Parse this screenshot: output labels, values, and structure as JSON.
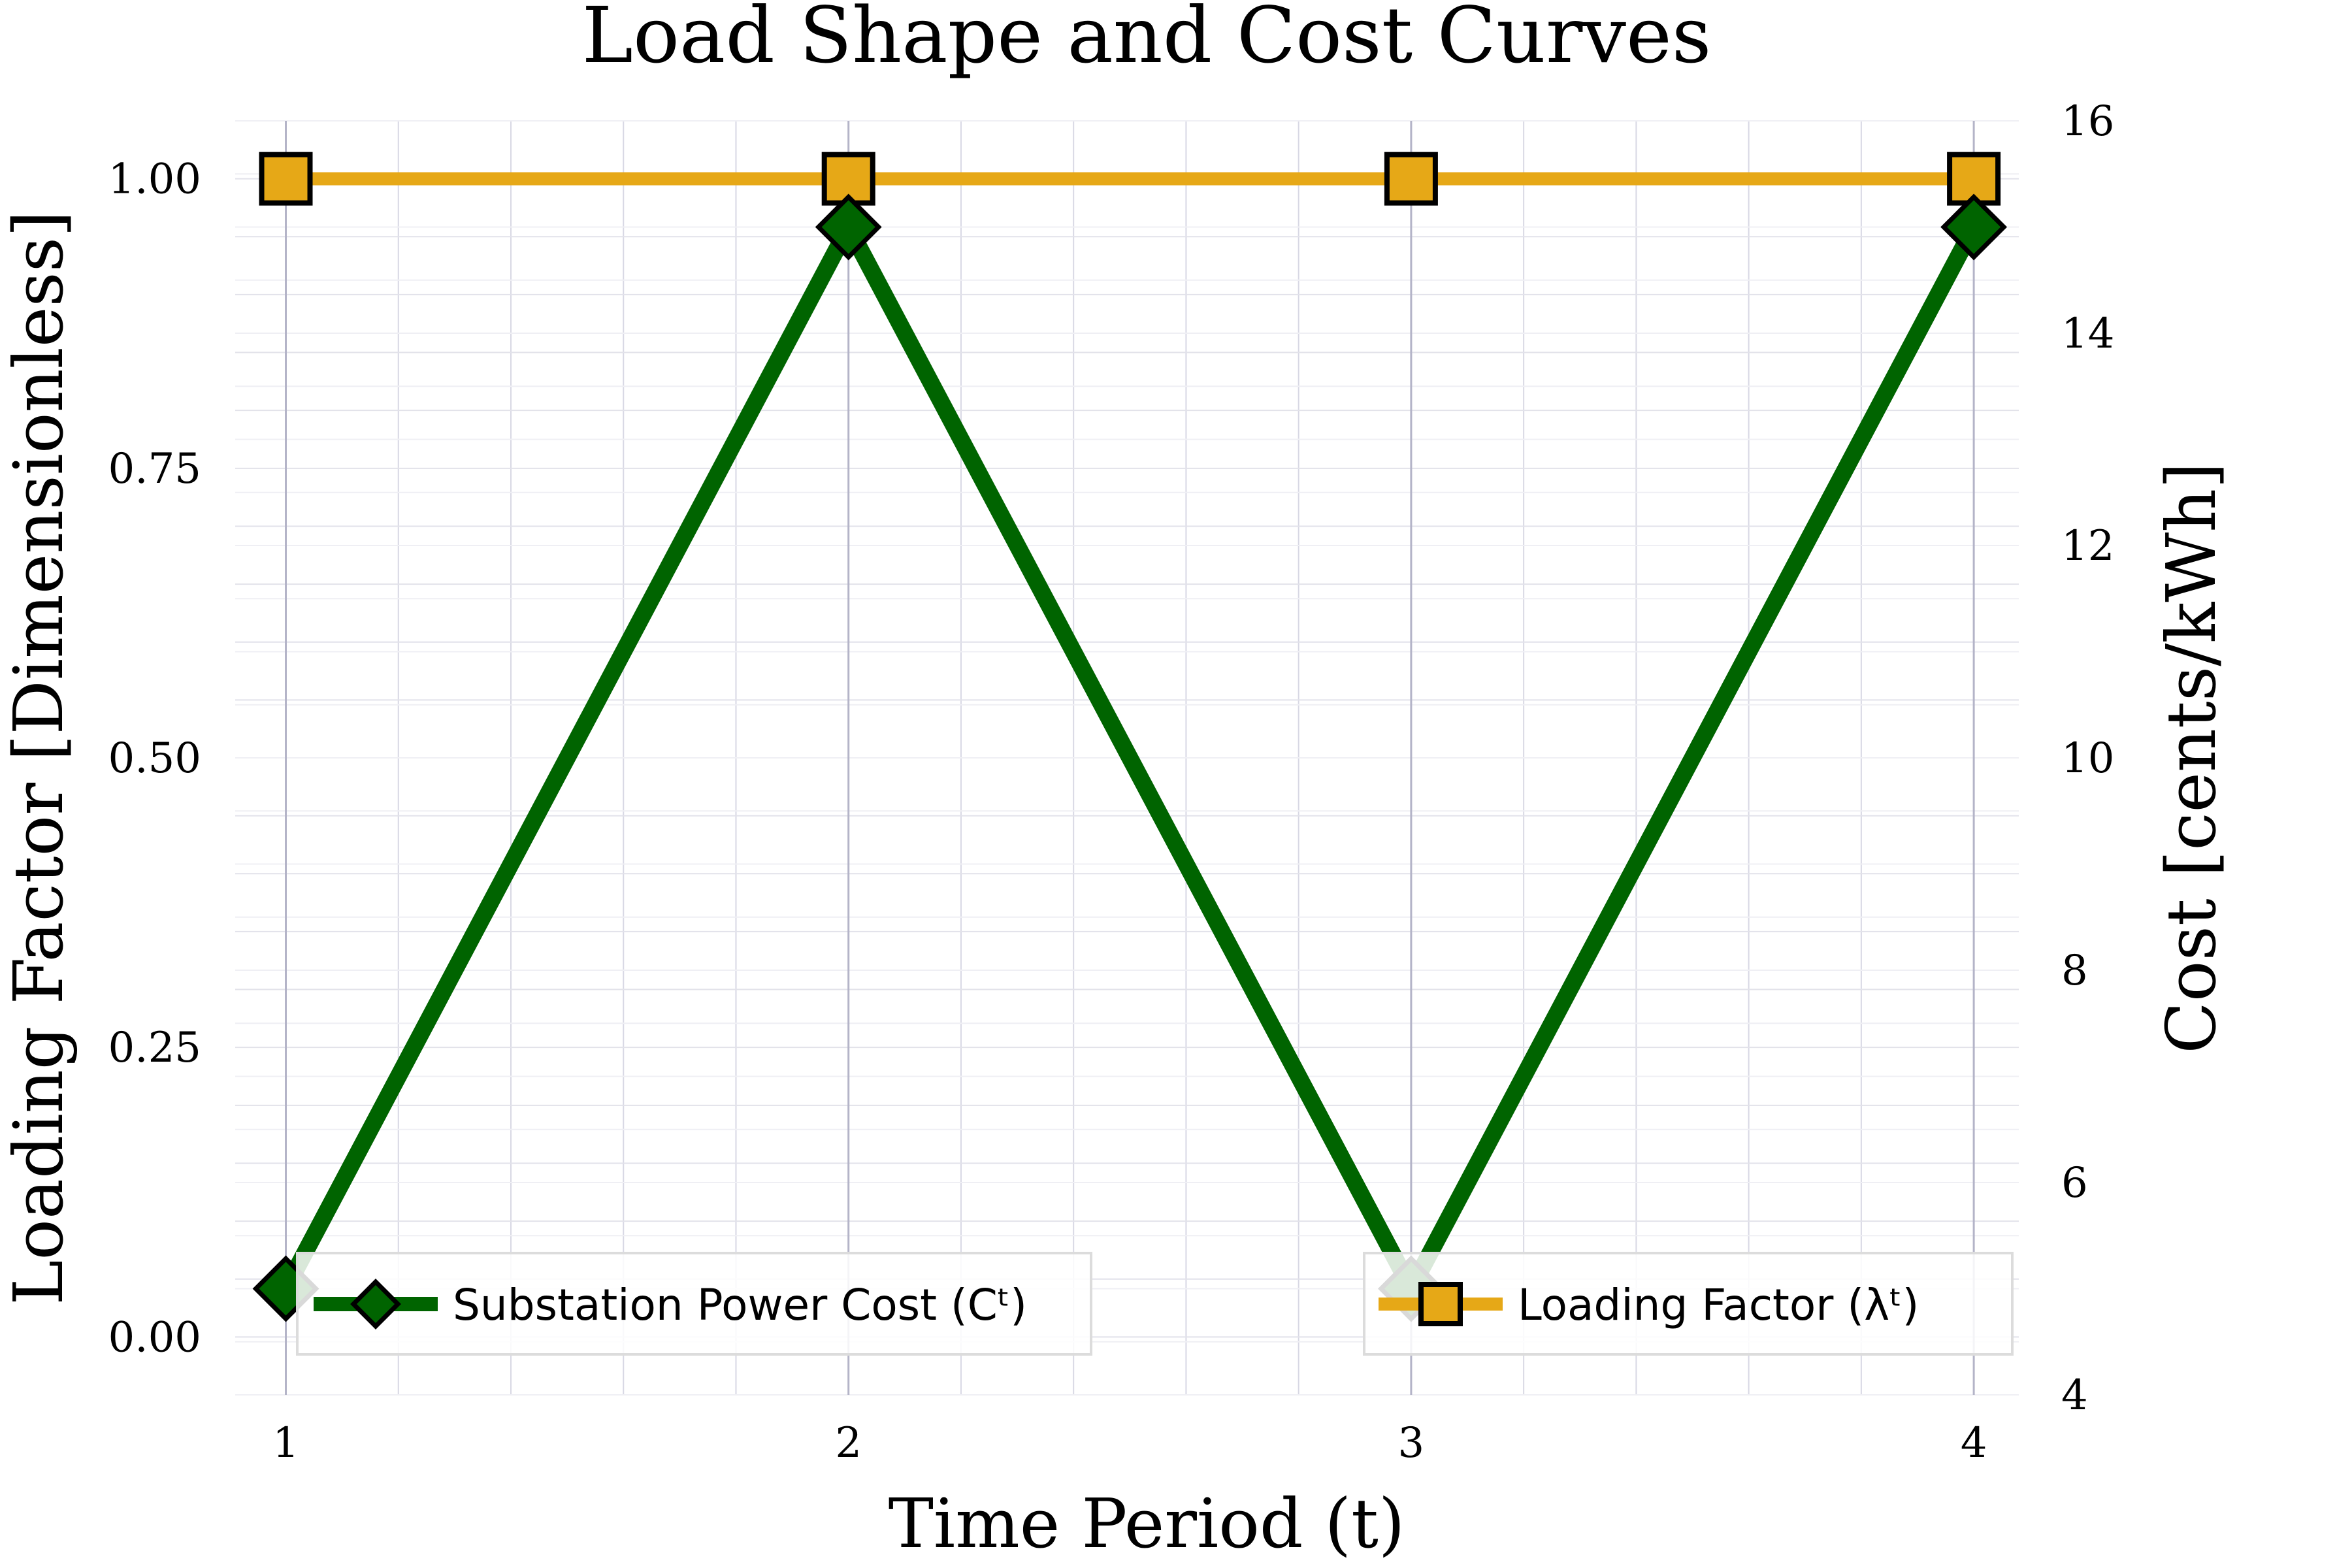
{
  "chart_data": {
    "type": "line",
    "title": "Load Shape and Cost Curves",
    "xlabel": "Time Period (t)",
    "ylabel_left": "Loading Factor [Dimensionless]",
    "ylabel_right": "Cost [cents/kWh]",
    "x": [
      1,
      2,
      3,
      4
    ],
    "x_ticks": [
      "1",
      "2",
      "3",
      "4"
    ],
    "y_left_ticks": [
      "0.00",
      "0.25",
      "0.50",
      "0.75",
      "1.00"
    ],
    "y_left_tick_values": [
      0,
      0.25,
      0.5,
      0.75,
      1.0
    ],
    "y_right_ticks": [
      "4",
      "6",
      "8",
      "10",
      "12",
      "14",
      "16"
    ],
    "y_right_tick_values": [
      4,
      6,
      8,
      10,
      12,
      14,
      16
    ],
    "xlim": [
      0.91,
      4.08
    ],
    "ylim_left": [
      -0.05,
      1.05
    ],
    "ylim_right": [
      4,
      16
    ],
    "grid": true,
    "series": [
      {
        "name": "Loading Factor (λᵗ)",
        "axis": "left",
        "values": [
          1.0,
          1.0,
          1.0,
          1.0
        ],
        "color": "#E6A817",
        "marker": "square"
      },
      {
        "name": "Substation Power Cost (Cᵗ)",
        "axis": "right",
        "values": [
          5.0,
          15.0,
          5.0,
          15.0
        ],
        "color": "#006400",
        "marker": "diamond"
      }
    ],
    "legends": [
      {
        "series": "Substation Power Cost (Cᵗ)",
        "placement": "bottom-left"
      },
      {
        "series": "Loading Factor (λᵗ)",
        "placement": "bottom-right"
      }
    ]
  }
}
